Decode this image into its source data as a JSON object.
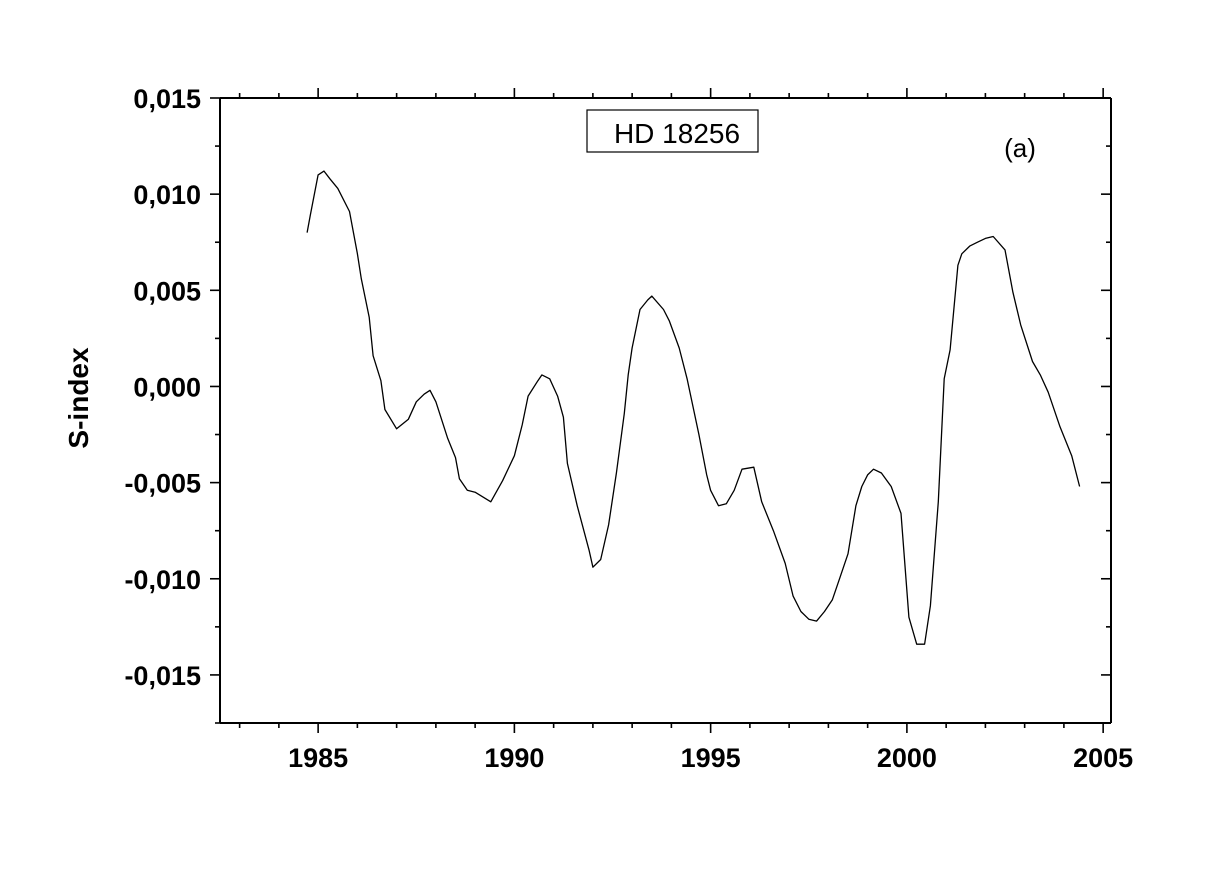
{
  "chart_data": {
    "type": "line",
    "title": "",
    "xlabel": "",
    "ylabel": "S-index",
    "legend_label": "HD 18256",
    "panel_label": "(a)",
    "xlim": [
      1982.5,
      2005.2
    ],
    "ylim": [
      -0.0175,
      0.015
    ],
    "xticks": [
      {
        "value": 1985,
        "label": "1985"
      },
      {
        "value": 1990,
        "label": "1990"
      },
      {
        "value": 1995,
        "label": "1995"
      },
      {
        "value": 2000,
        "label": "2000"
      },
      {
        "value": 2005,
        "label": "2005"
      }
    ],
    "yticks": [
      {
        "value": 0.015,
        "label": "0,015"
      },
      {
        "value": 0.01,
        "label": "0,010"
      },
      {
        "value": 0.005,
        "label": "0,005"
      },
      {
        "value": 0.0,
        "label": "0,000"
      },
      {
        "value": -0.005,
        "label": "-0,005"
      },
      {
        "value": -0.01,
        "label": "-0,010"
      },
      {
        "value": -0.015,
        "label": "-0,015"
      }
    ],
    "grid": false,
    "series": [
      {
        "color": "#000000",
        "points": [
          [
            1984.72,
            0.008
          ],
          [
            1984.8,
            0.0089
          ],
          [
            1985.0,
            0.011
          ],
          [
            1985.15,
            0.0112
          ],
          [
            1985.3,
            0.0108
          ],
          [
            1985.5,
            0.0103
          ],
          [
            1985.8,
            0.0091
          ],
          [
            1986.0,
            0.0069
          ],
          [
            1986.1,
            0.0056
          ],
          [
            1986.3,
            0.0036
          ],
          [
            1986.4,
            0.0016
          ],
          [
            1986.6,
            0.0003
          ],
          [
            1986.7,
            -0.0012
          ],
          [
            1987.0,
            -0.0022
          ],
          [
            1987.3,
            -0.0017
          ],
          [
            1987.5,
            -0.0008
          ],
          [
            1987.7,
            -0.0004
          ],
          [
            1987.85,
            -0.0002
          ],
          [
            1988.0,
            -0.0008
          ],
          [
            1988.3,
            -0.0027
          ],
          [
            1988.5,
            -0.0037
          ],
          [
            1988.6,
            -0.0048
          ],
          [
            1988.8,
            -0.0054
          ],
          [
            1989.0,
            -0.0055
          ],
          [
            1989.4,
            -0.006
          ],
          [
            1989.7,
            -0.0049
          ],
          [
            1990.0,
            -0.0036
          ],
          [
            1990.2,
            -0.002
          ],
          [
            1990.35,
            -0.0005
          ],
          [
            1990.6,
            0.0003
          ],
          [
            1990.7,
            0.0006
          ],
          [
            1990.9,
            0.0004
          ],
          [
            1991.1,
            -0.0005
          ],
          [
            1991.25,
            -0.0016
          ],
          [
            1991.35,
            -0.004
          ],
          [
            1991.6,
            -0.0062
          ],
          [
            1991.9,
            -0.0085
          ],
          [
            1992.0,
            -0.0094
          ],
          [
            1992.2,
            -0.009
          ],
          [
            1992.4,
            -0.0072
          ],
          [
            1992.6,
            -0.0045
          ],
          [
            1992.8,
            -0.0014
          ],
          [
            1992.9,
            0.0006
          ],
          [
            1993.0,
            0.002
          ],
          [
            1993.2,
            0.004
          ],
          [
            1993.4,
            0.0045
          ],
          [
            1993.5,
            0.0047
          ],
          [
            1993.8,
            0.004
          ],
          [
            1993.95,
            0.0034
          ],
          [
            1994.2,
            0.002
          ],
          [
            1994.4,
            0.0004
          ],
          [
            1994.7,
            -0.0025
          ],
          [
            1994.9,
            -0.0046
          ],
          [
            1995.0,
            -0.0054
          ],
          [
            1995.2,
            -0.0062
          ],
          [
            1995.4,
            -0.0061
          ],
          [
            1995.6,
            -0.0054
          ],
          [
            1995.8,
            -0.0043
          ],
          [
            1996.1,
            -0.0042
          ],
          [
            1996.3,
            -0.006
          ],
          [
            1996.6,
            -0.0075
          ],
          [
            1996.9,
            -0.0092
          ],
          [
            1997.1,
            -0.0109
          ],
          [
            1997.3,
            -0.0117
          ],
          [
            1997.5,
            -0.0121
          ],
          [
            1997.7,
            -0.0122
          ],
          [
            1997.9,
            -0.0117
          ],
          [
            1998.1,
            -0.0111
          ],
          [
            1998.3,
            -0.0099
          ],
          [
            1998.5,
            -0.0087
          ],
          [
            1998.7,
            -0.0062
          ],
          [
            1998.85,
            -0.0052
          ],
          [
            1999.0,
            -0.0046
          ],
          [
            1999.15,
            -0.0043
          ],
          [
            1999.35,
            -0.0045
          ],
          [
            1999.6,
            -0.0052
          ],
          [
            1999.85,
            -0.0066
          ],
          [
            2000.05,
            -0.012
          ],
          [
            2000.25,
            -0.0134
          ],
          [
            2000.45,
            -0.0134
          ],
          [
            2000.6,
            -0.0114
          ],
          [
            2000.8,
            -0.006
          ],
          [
            2000.95,
            0.0004
          ],
          [
            2001.1,
            0.0019
          ],
          [
            2001.3,
            0.0063
          ],
          [
            2001.4,
            0.0069
          ],
          [
            2001.6,
            0.0073
          ],
          [
            2001.8,
            0.0075
          ],
          [
            2002.0,
            0.0077
          ],
          [
            2002.2,
            0.0078
          ],
          [
            2002.5,
            0.0071
          ],
          [
            2002.7,
            0.0049
          ],
          [
            2002.9,
            0.0032
          ],
          [
            2003.2,
            0.0013
          ],
          [
            2003.4,
            0.0006
          ],
          [
            2003.6,
            -0.0003
          ],
          [
            2003.9,
            -0.0021
          ],
          [
            2004.2,
            -0.0036
          ],
          [
            2004.4,
            -0.0052
          ]
        ]
      }
    ]
  }
}
